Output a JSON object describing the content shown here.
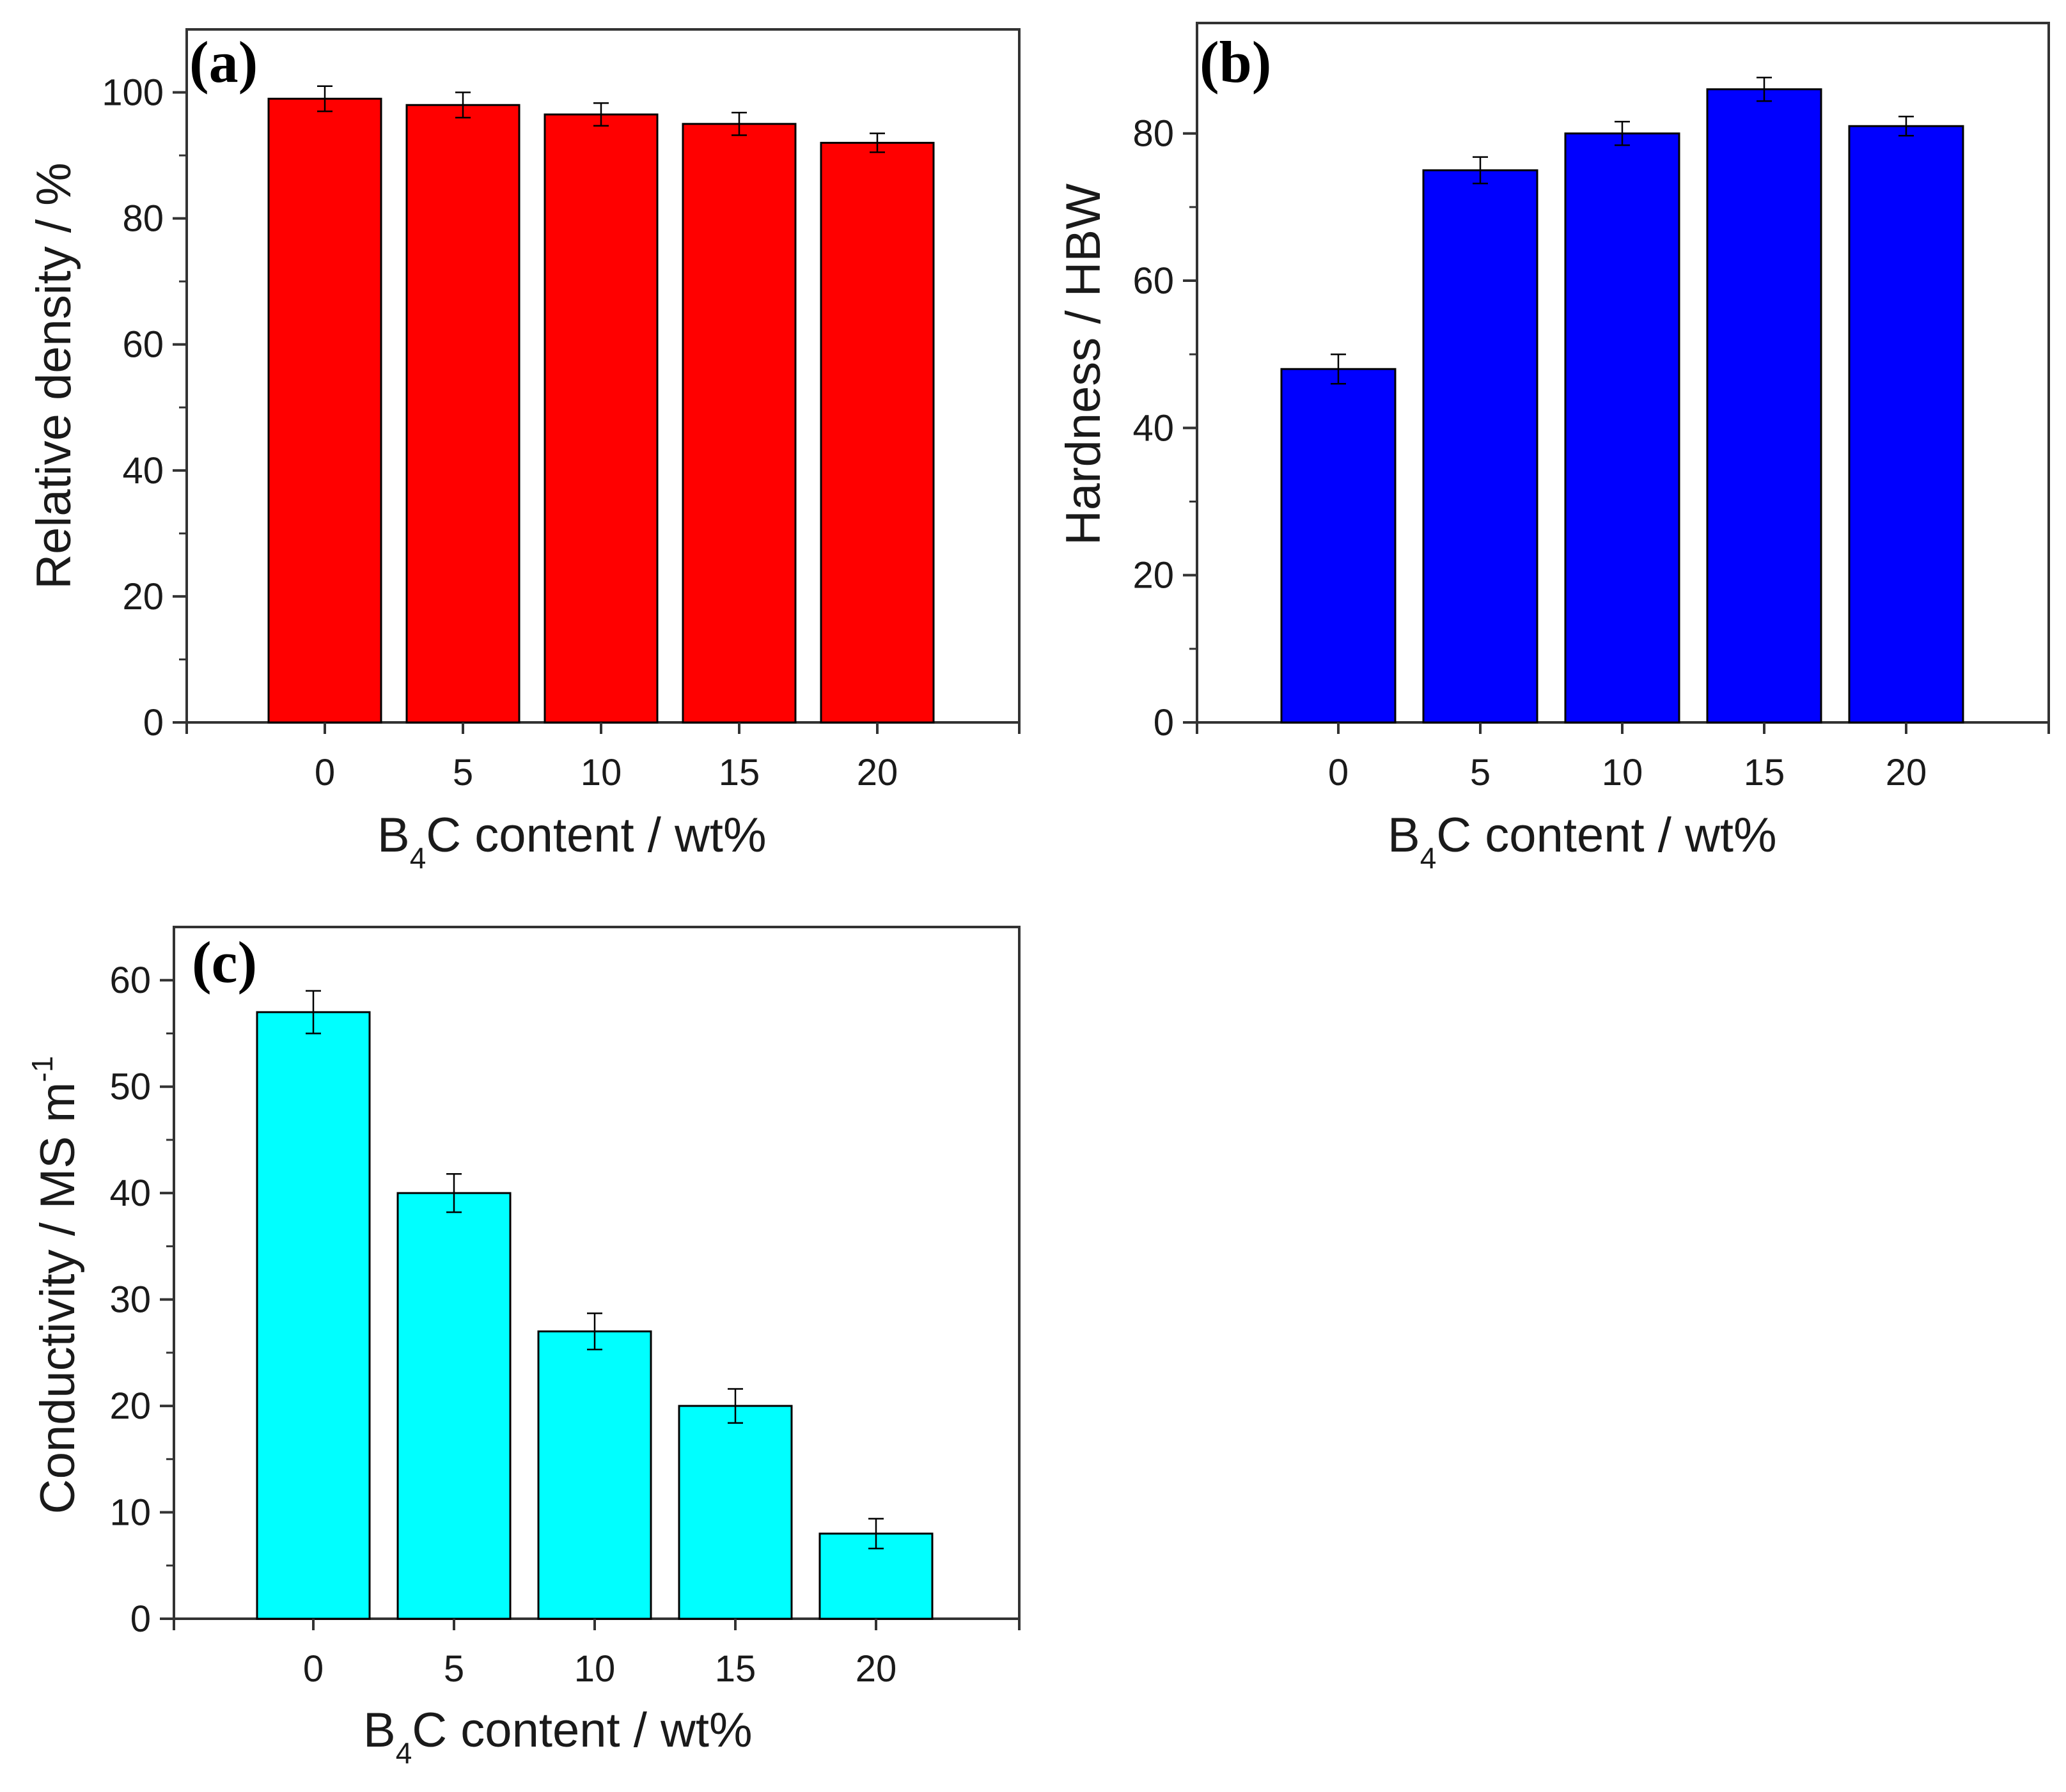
{
  "chart_data": [
    {
      "id": "a",
      "type": "bar",
      "panel_label": "(a)",
      "categories": [
        "0",
        "5",
        "10",
        "15",
        "20"
      ],
      "values": [
        99,
        98,
        96.5,
        95,
        92
      ],
      "errors": [
        2,
        2,
        1.8,
        1.8,
        1.5
      ],
      "color": "#ff0000",
      "ylim": [
        0,
        110
      ],
      "yticks": [
        "0",
        "20",
        "40",
        "60",
        "80",
        "100"
      ],
      "ylabel": "Relative density / %",
      "xlabel": "B4C content / wt%",
      "xlabel_parts": [
        "B",
        "4",
        "C content / wt%"
      ]
    },
    {
      "id": "b",
      "type": "bar",
      "panel_label": "(b)",
      "categories": [
        "0",
        "5",
        "10",
        "15",
        "20"
      ],
      "values": [
        48,
        75,
        80,
        86,
        81
      ],
      "errors": [
        2,
        1.8,
        1.6,
        1.6,
        1.3
      ],
      "color": "#0000ff",
      "ylim": [
        0,
        95
      ],
      "yticks": [
        "0",
        "20",
        "40",
        "60",
        "80"
      ],
      "ylabel": "Hardness / HBW",
      "xlabel": "B4C content / wt%",
      "xlabel_parts": [
        "B",
        "4",
        "C content / wt%"
      ]
    },
    {
      "id": "c",
      "type": "bar",
      "panel_label": "(c)",
      "categories": [
        "0",
        "5",
        "10",
        "15",
        "20"
      ],
      "values": [
        57,
        40,
        27,
        20,
        8
      ],
      "errors": [
        2,
        1.8,
        1.7,
        1.6,
        1.4
      ],
      "color": "#00ffff",
      "ylim": [
        0,
        65
      ],
      "yticks": [
        "0",
        "10",
        "20",
        "30",
        "40",
        "50",
        "60"
      ],
      "ylabel": "Conductivity / MS m-1",
      "ylabel_parts": [
        "Conductivity / MS m",
        "-1"
      ],
      "xlabel": "B4C content / wt%",
      "xlabel_parts": [
        "B",
        "4",
        "C content / wt%"
      ]
    }
  ]
}
